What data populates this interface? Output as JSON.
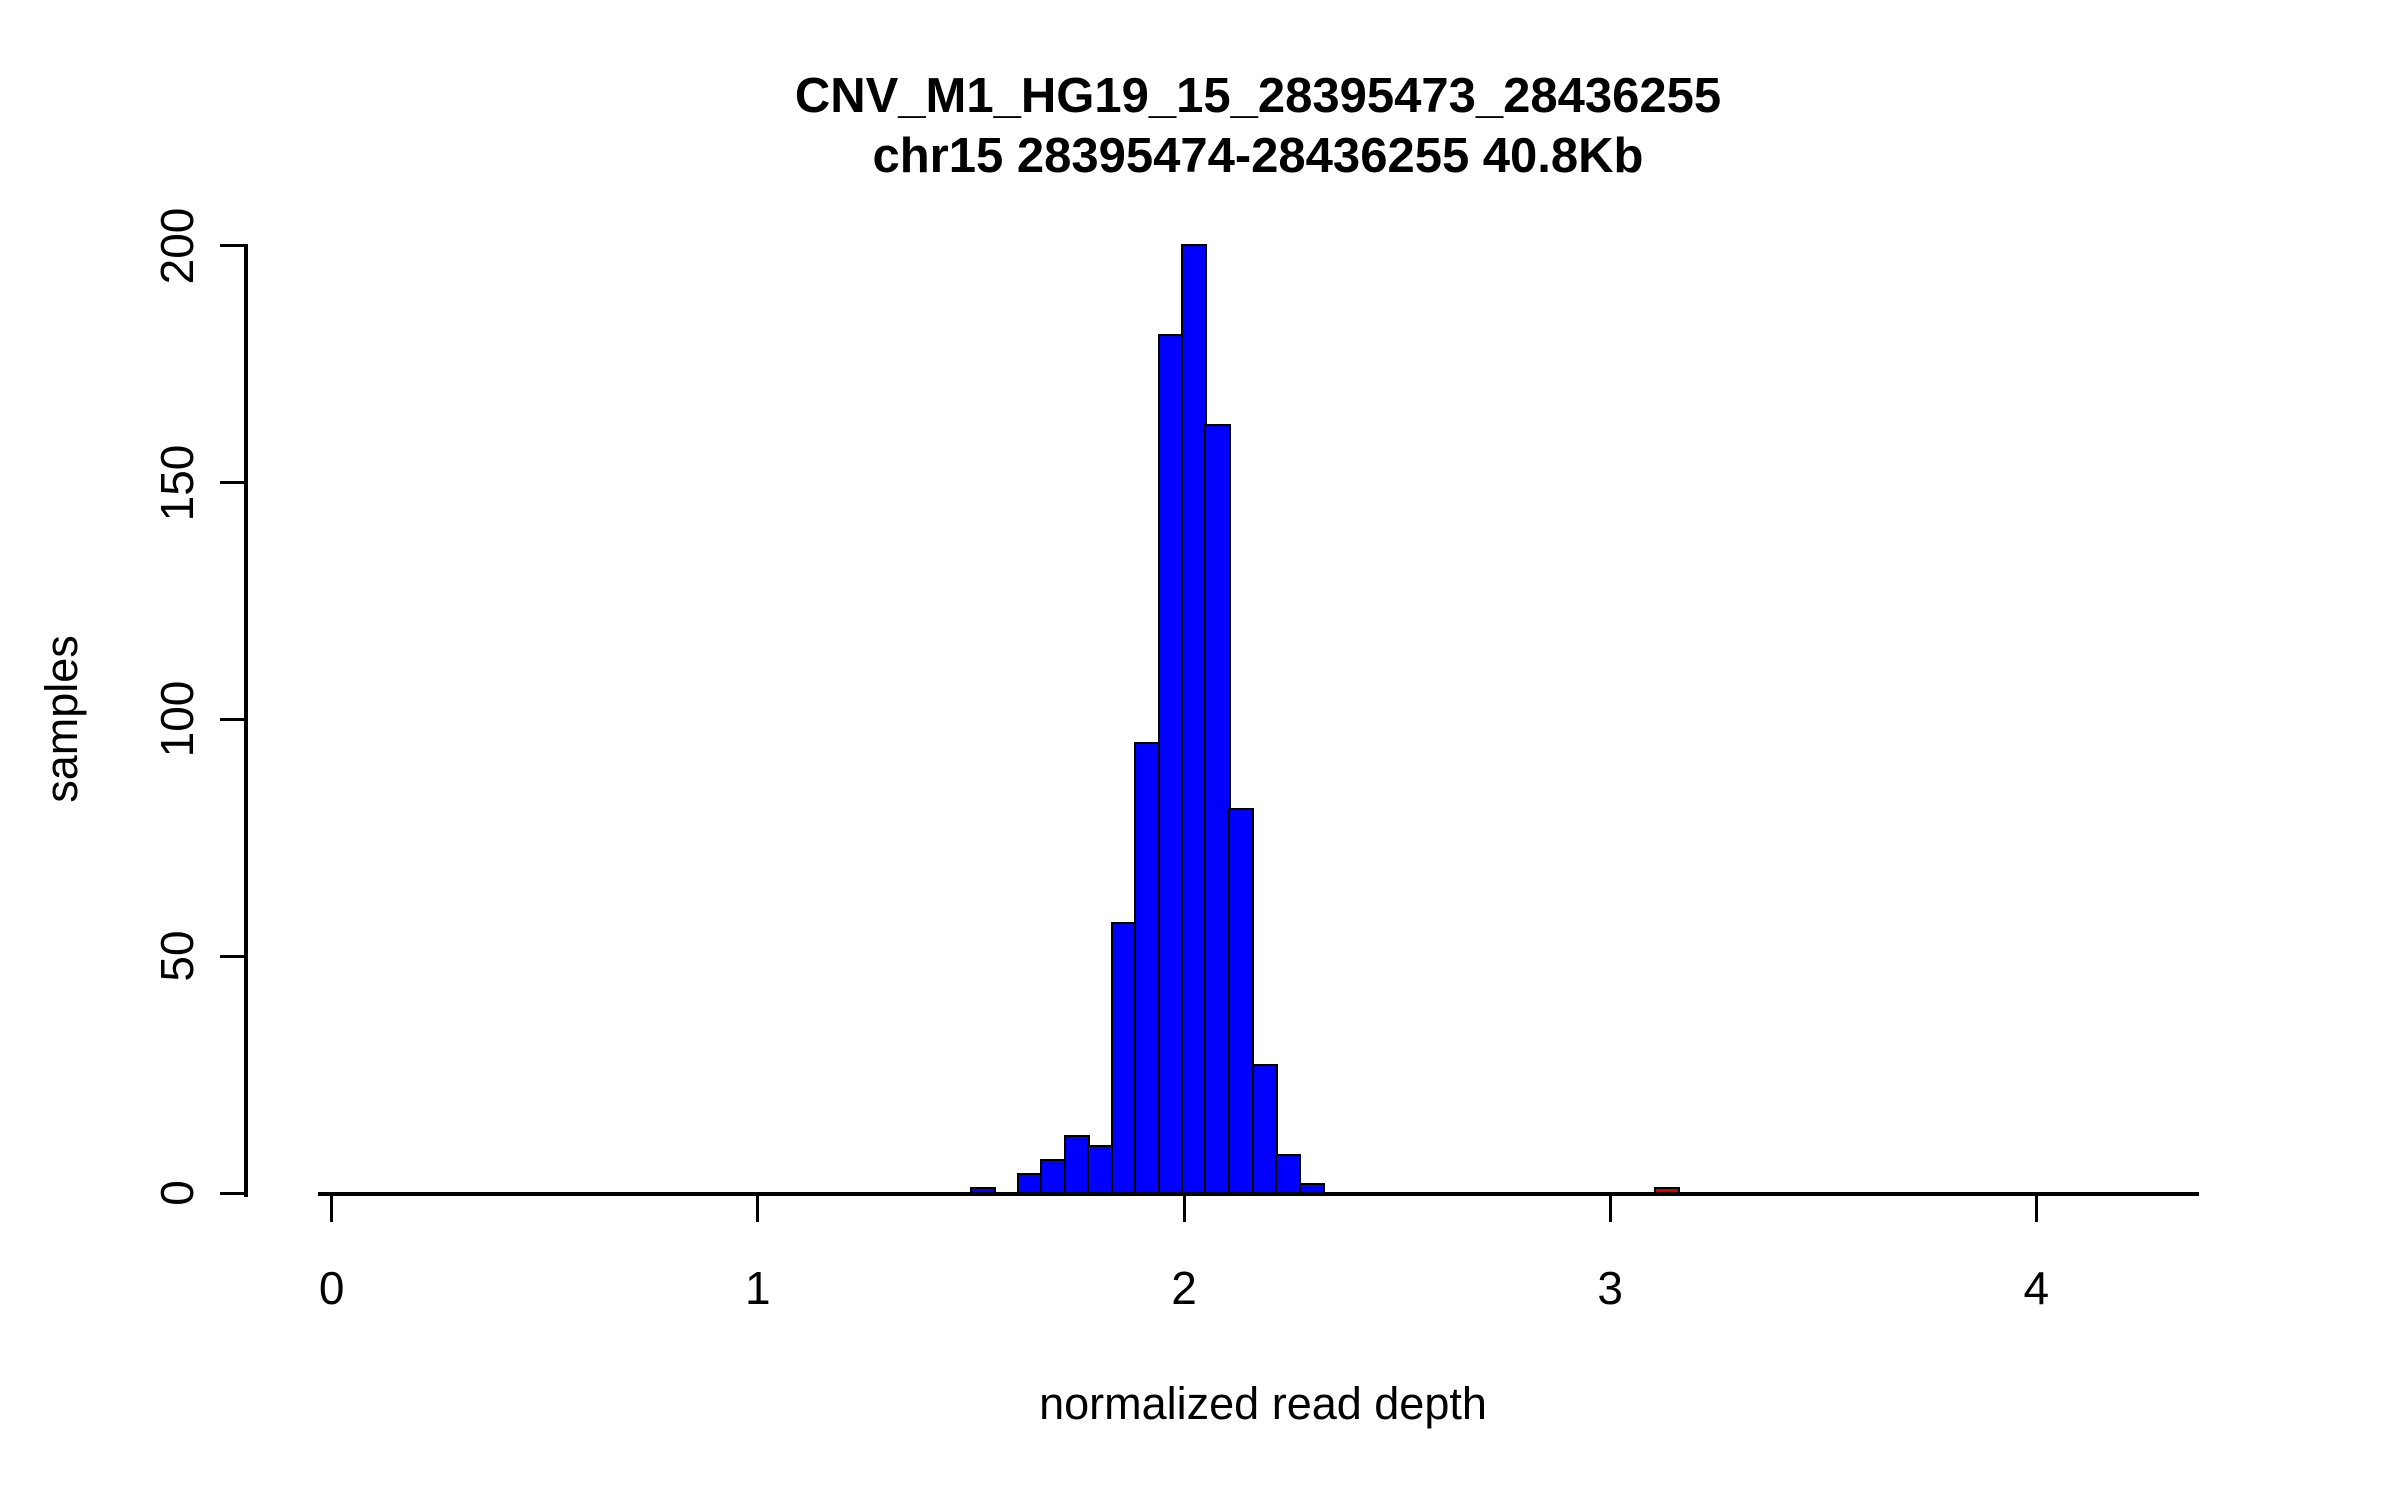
{
  "chart_data": {
    "type": "bar",
    "subtype": "histogram",
    "title": "CNV_M1_HG19_15_28395473_28436255",
    "subtitle": "chr15 28395474-28436255 40.8Kb",
    "xlabel": "normalized read depth",
    "ylabel": "samples",
    "x_ticks": [
      0,
      1,
      2,
      3,
      4
    ],
    "y_ticks": [
      0,
      50,
      100,
      150,
      200
    ],
    "xlim": [
      -0.032,
      4.382
    ],
    "ylim": [
      0,
      200
    ],
    "grid": false,
    "legend": false,
    "bin_width": 0.055,
    "colors": {
      "bar_fill": "#0000FF",
      "outlier_fill": "#D40000",
      "border": "#000000",
      "background": "#FFFFFF"
    },
    "bins": [
      {
        "from": 1.5,
        "to": 1.555,
        "count": 1,
        "color": "bar_fill"
      },
      {
        "from": 1.555,
        "to": 1.61,
        "count": 0,
        "color": "bar_fill"
      },
      {
        "from": 1.61,
        "to": 1.665,
        "count": 4,
        "color": "bar_fill"
      },
      {
        "from": 1.665,
        "to": 1.721,
        "count": 7,
        "color": "bar_fill"
      },
      {
        "from": 1.721,
        "to": 1.776,
        "count": 12,
        "color": "bar_fill"
      },
      {
        "from": 1.776,
        "to": 1.831,
        "count": 10,
        "color": "bar_fill"
      },
      {
        "from": 1.831,
        "to": 1.886,
        "count": 57,
        "color": "bar_fill"
      },
      {
        "from": 1.886,
        "to": 1.941,
        "count": 95,
        "color": "bar_fill"
      },
      {
        "from": 1.941,
        "to": 1.996,
        "count": 181,
        "color": "bar_fill"
      },
      {
        "from": 1.996,
        "to": 2.051,
        "count": 200,
        "color": "bar_fill"
      },
      {
        "from": 2.051,
        "to": 2.107,
        "count": 162,
        "color": "bar_fill"
      },
      {
        "from": 2.107,
        "to": 2.162,
        "count": 81,
        "color": "bar_fill"
      },
      {
        "from": 2.162,
        "to": 2.217,
        "count": 27,
        "color": "bar_fill"
      },
      {
        "from": 2.217,
        "to": 2.272,
        "count": 8,
        "color": "bar_fill"
      },
      {
        "from": 2.272,
        "to": 2.327,
        "count": 2,
        "color": "bar_fill"
      },
      {
        "from": 3.106,
        "to": 3.161,
        "count": 1,
        "color": "outlier_fill"
      }
    ]
  }
}
